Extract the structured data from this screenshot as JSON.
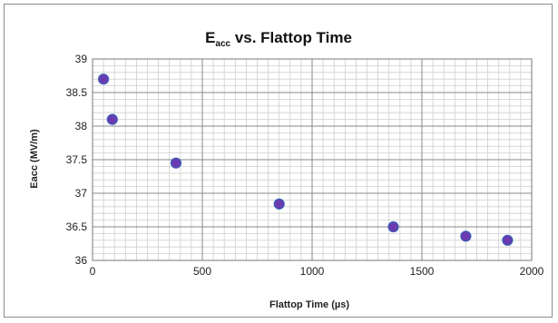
{
  "chart_data": {
    "type": "scatter",
    "title": {
      "main": "E",
      "sub": "acc",
      "rest": " vs. Flattop Time"
    },
    "xlabel": "Flattop Time (µs)",
    "ylabel": "Eacc (MV/m)",
    "xlim": [
      0,
      2000
    ],
    "ylim": [
      36,
      39
    ],
    "xticks": [
      0,
      500,
      1000,
      1500,
      2000
    ],
    "yticks": [
      36,
      36.5,
      37,
      37.5,
      38,
      38.5,
      39
    ],
    "xtick_labels": [
      "0",
      "500",
      "1000",
      "1500",
      "2000"
    ],
    "ytick_labels": [
      "36",
      "36.5",
      "37",
      "37.5",
      "38",
      "38.5",
      "39"
    ],
    "grid": true,
    "minor_grid": true,
    "legend": "none",
    "marker_color": "#6a3bb0",
    "marker_edge_color": "#3d5fb8",
    "series": [
      {
        "x": [
          50,
          90,
          380,
          850,
          1370,
          1700,
          1890
        ],
        "y": [
          38.7,
          38.1,
          37.45,
          36.84,
          36.5,
          36.36,
          36.3
        ]
      }
    ]
  }
}
